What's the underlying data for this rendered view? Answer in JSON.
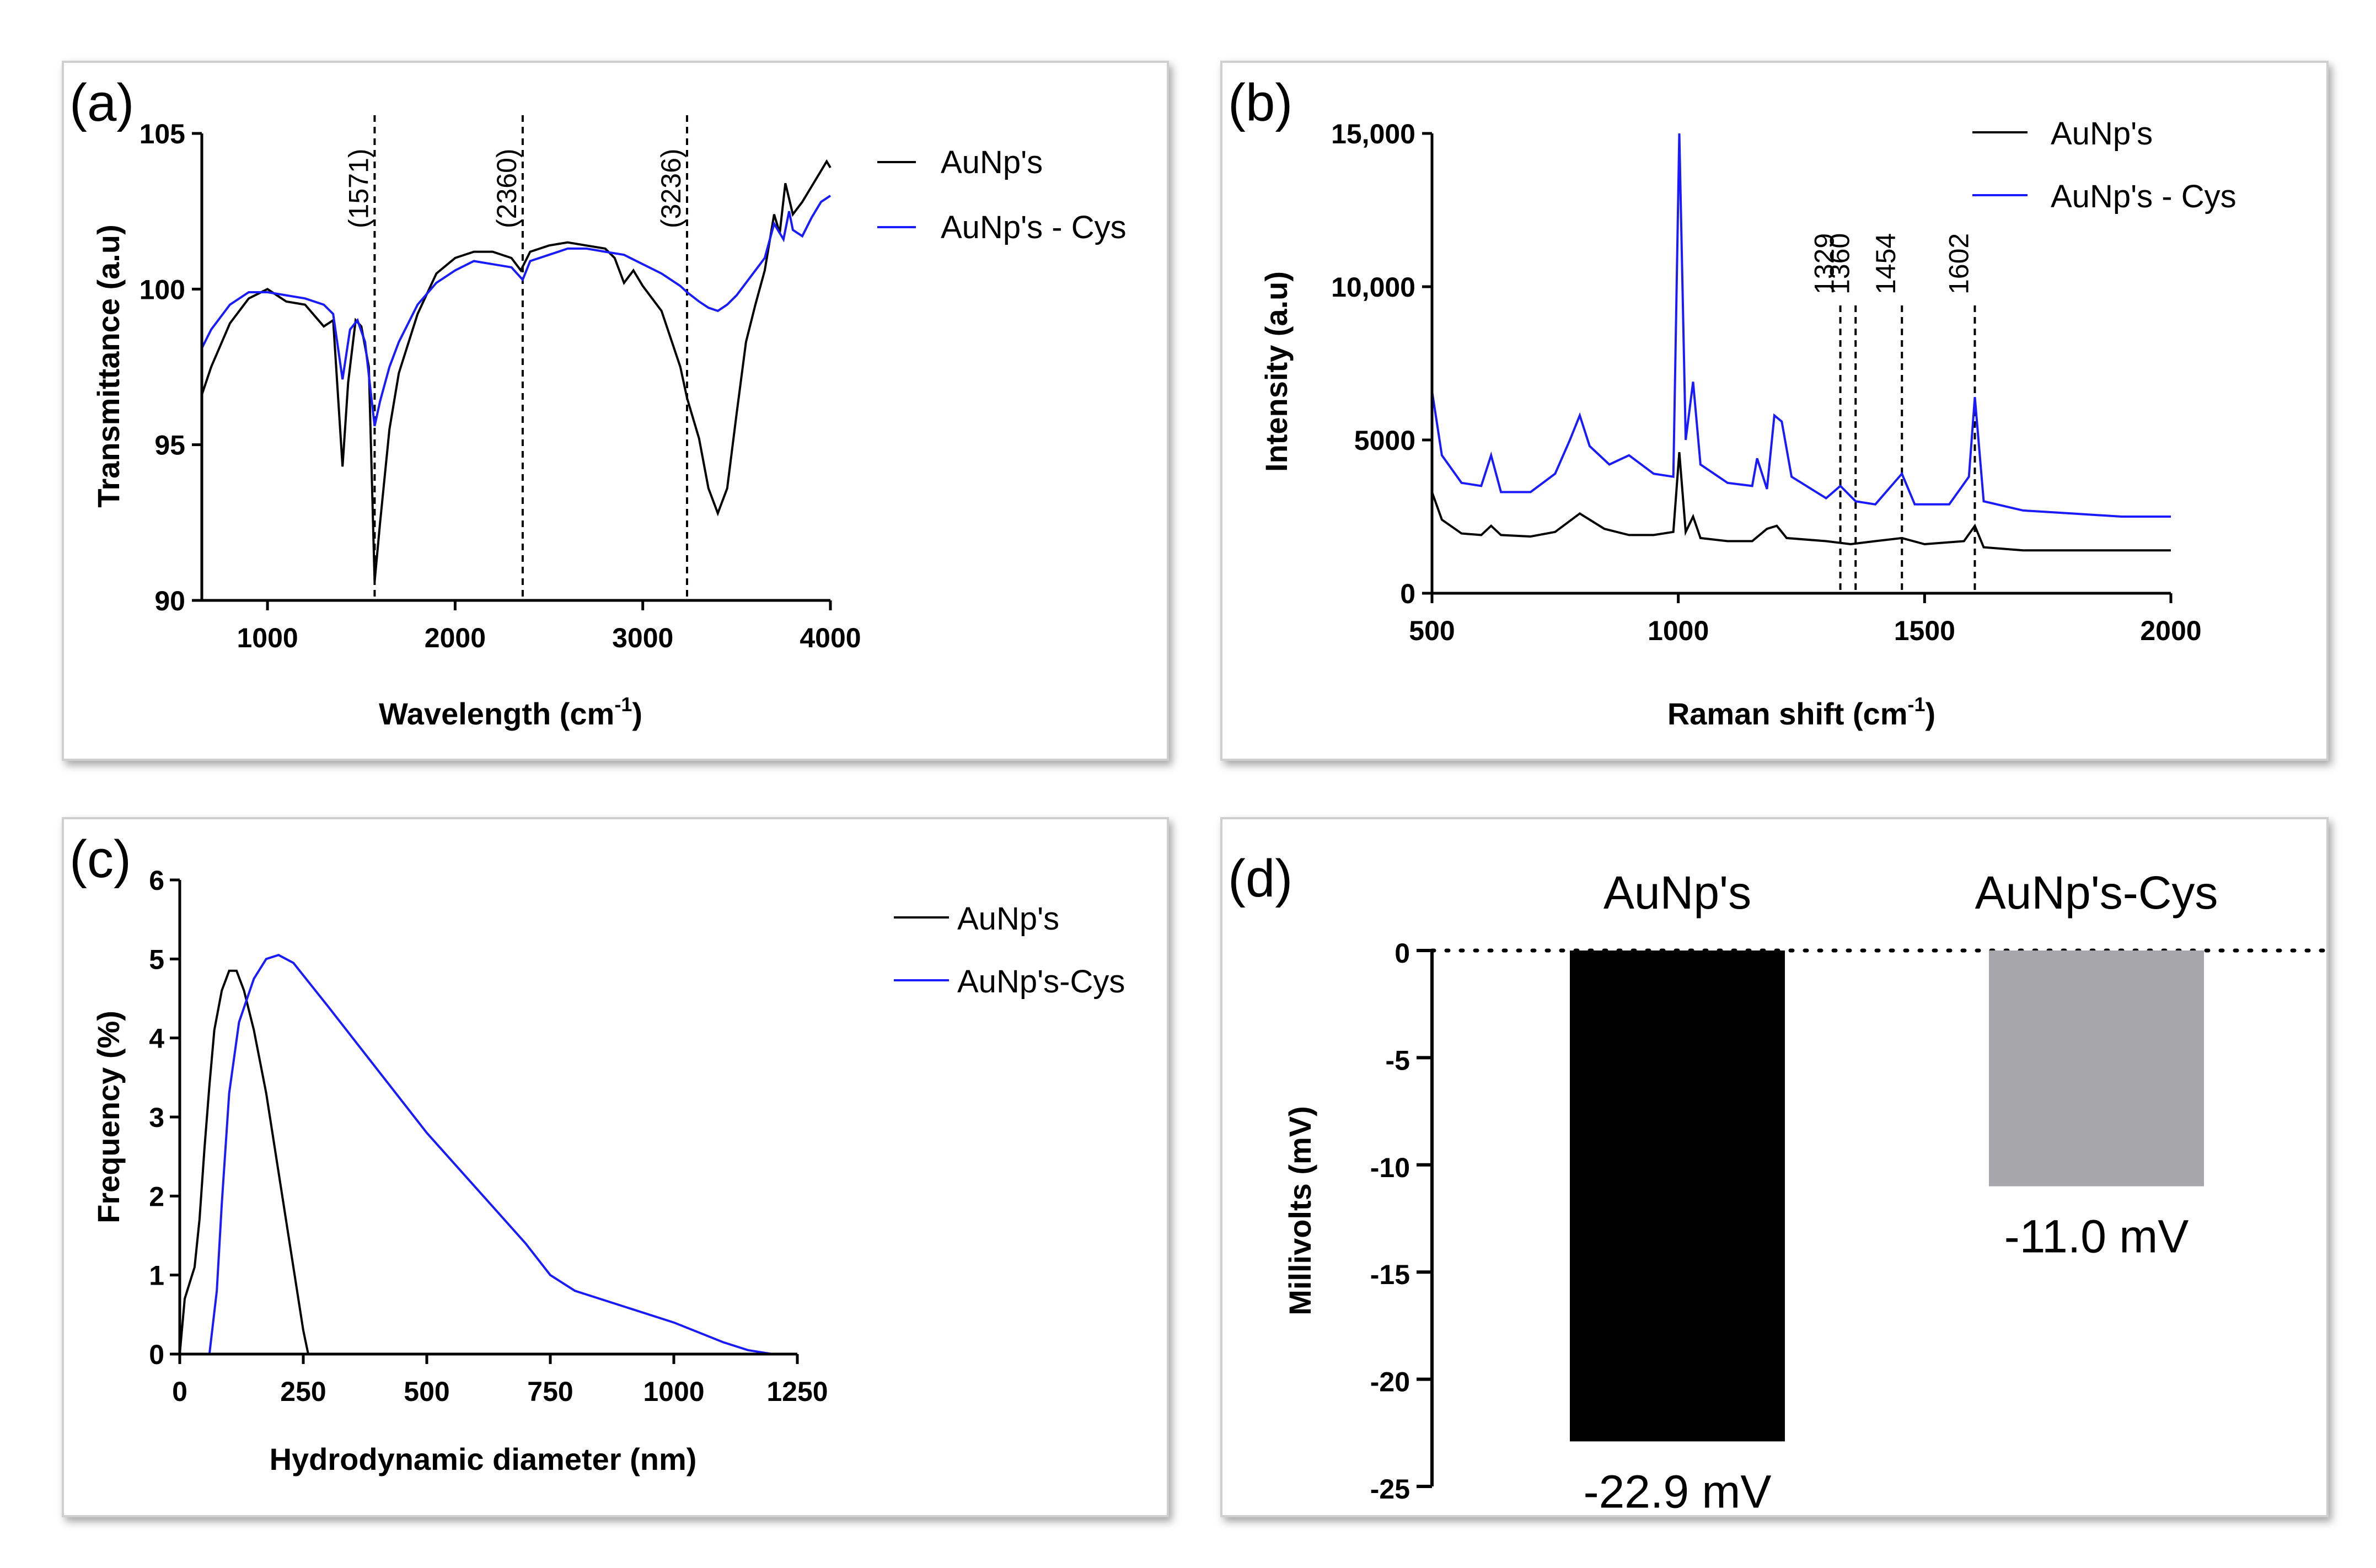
{
  "chart_data": [
    {
      "id": "a",
      "panel_label": "(a)",
      "type": "line",
      "xlabel": "Wavelength (cm",
      "xlabel_sup": "-1",
      "xlabel_end": ")",
      "ylabel": "Transmittance (a.u)",
      "xlim": [
        650,
        4000
      ],
      "ylim": [
        90,
        105
      ],
      "xticks": [
        1000,
        2000,
        3000,
        4000
      ],
      "yticks": [
        90,
        95,
        100,
        105
      ],
      "annotations": [
        {
          "x": 1571,
          "label": "(1571)"
        },
        {
          "x": 2360,
          "label": "(2360)"
        },
        {
          "x": 3236,
          "label": "(3236)"
        }
      ],
      "series": [
        {
          "name": "AuNp's",
          "color": "#000000",
          "points": [
            [
              650,
              96.6
            ],
            [
              700,
              97.5
            ],
            [
              800,
              98.9
            ],
            [
              900,
              99.7
            ],
            [
              1000,
              100.0
            ],
            [
              1100,
              99.6
            ],
            [
              1200,
              99.5
            ],
            [
              1300,
              98.8
            ],
            [
              1350,
              99.0
            ],
            [
              1400,
              94.3
            ],
            [
              1430,
              97.0
            ],
            [
              1470,
              99.0
            ],
            [
              1500,
              98.8
            ],
            [
              1540,
              97.5
            ],
            [
              1571,
              90.6
            ],
            [
              1600,
              92.5
            ],
            [
              1650,
              95.5
            ],
            [
              1700,
              97.3
            ],
            [
              1800,
              99.2
            ],
            [
              1900,
              100.5
            ],
            [
              2000,
              101.0
            ],
            [
              2100,
              101.2
            ],
            [
              2200,
              101.2
            ],
            [
              2300,
              101.0
            ],
            [
              2350,
              100.6
            ],
            [
              2400,
              101.2
            ],
            [
              2500,
              101.4
            ],
            [
              2600,
              101.5
            ],
            [
              2700,
              101.4
            ],
            [
              2800,
              101.3
            ],
            [
              2850,
              101.0
            ],
            [
              2900,
              100.2
            ],
            [
              2950,
              100.6
            ],
            [
              3000,
              100.1
            ],
            [
              3100,
              99.3
            ],
            [
              3200,
              97.5
            ],
            [
              3236,
              96.5
            ],
            [
              3300,
              95.2
            ],
            [
              3350,
              93.6
            ],
            [
              3400,
              92.8
            ],
            [
              3450,
              93.6
            ],
            [
              3500,
              96.0
            ],
            [
              3550,
              98.3
            ],
            [
              3600,
              99.5
            ],
            [
              3650,
              100.6
            ],
            [
              3700,
              102.4
            ],
            [
              3730,
              101.8
            ],
            [
              3760,
              103.4
            ],
            [
              3800,
              102.4
            ],
            [
              3850,
              102.8
            ],
            [
              3900,
              103.3
            ],
            [
              3950,
              103.8
            ],
            [
              3980,
              104.1
            ],
            [
              4000,
              103.9
            ]
          ]
        },
        {
          "name": "AuNp's - Cys",
          "color": "#1a1aff",
          "points": [
            [
              650,
              98.1
            ],
            [
              700,
              98.7
            ],
            [
              800,
              99.5
            ],
            [
              900,
              99.9
            ],
            [
              1000,
              99.9
            ],
            [
              1100,
              99.8
            ],
            [
              1200,
              99.7
            ],
            [
              1300,
              99.5
            ],
            [
              1350,
              99.2
            ],
            [
              1400,
              97.1
            ],
            [
              1440,
              98.7
            ],
            [
              1480,
              99.0
            ],
            [
              1520,
              98.3
            ],
            [
              1571,
              95.6
            ],
            [
              1600,
              96.4
            ],
            [
              1650,
              97.5
            ],
            [
              1700,
              98.3
            ],
            [
              1800,
              99.5
            ],
            [
              1900,
              100.2
            ],
            [
              2000,
              100.6
            ],
            [
              2100,
              100.9
            ],
            [
              2200,
              100.8
            ],
            [
              2300,
              100.7
            ],
            [
              2360,
              100.3
            ],
            [
              2400,
              100.9
            ],
            [
              2500,
              101.1
            ],
            [
              2600,
              101.3
            ],
            [
              2700,
              101.3
            ],
            [
              2800,
              101.2
            ],
            [
              2900,
              101.1
            ],
            [
              3000,
              100.8
            ],
            [
              3100,
              100.5
            ],
            [
              3200,
              100.1
            ],
            [
              3236,
              99.9
            ],
            [
              3300,
              99.6
            ],
            [
              3350,
              99.4
            ],
            [
              3400,
              99.3
            ],
            [
              3450,
              99.5
            ],
            [
              3500,
              99.8
            ],
            [
              3600,
              100.6
            ],
            [
              3650,
              101.0
            ],
            [
              3700,
              102.1
            ],
            [
              3750,
              101.6
            ],
            [
              3780,
              102.5
            ],
            [
              3800,
              101.9
            ],
            [
              3850,
              101.7
            ],
            [
              3900,
              102.3
            ],
            [
              3950,
              102.8
            ],
            [
              4000,
              103.0
            ]
          ]
        }
      ]
    },
    {
      "id": "b",
      "panel_label": "(b)",
      "type": "line",
      "xlabel": "Raman shift (cm",
      "xlabel_sup": "-1",
      "xlabel_end": ")",
      "ylabel": "Intensity (a.u)",
      "xlim": [
        500,
        2000
      ],
      "ylim": [
        0,
        15000
      ],
      "xticks": [
        500,
        1000,
        1500,
        2000
      ],
      "yticks": [
        0,
        5000,
        10000,
        15000
      ],
      "ytick_labels": [
        "0",
        "5000",
        "10,000",
        "15,000"
      ],
      "annotations": [
        {
          "x": 1329,
          "label": "1329"
        },
        {
          "x": 1360,
          "label": "1360"
        },
        {
          "x": 1454,
          "label": "1454"
        },
        {
          "x": 1602,
          "label": "1602"
        }
      ],
      "series": [
        {
          "name": "AuNp's",
          "color": "#000000",
          "points": [
            [
              500,
              3300
            ],
            [
              520,
              2400
            ],
            [
              560,
              1950
            ],
            [
              600,
              1900
            ],
            [
              620,
              2200
            ],
            [
              640,
              1900
            ],
            [
              700,
              1850
            ],
            [
              750,
              2000
            ],
            [
              800,
              2600
            ],
            [
              850,
              2100
            ],
            [
              900,
              1900
            ],
            [
              950,
              1900
            ],
            [
              990,
              2000
            ],
            [
              1002,
              4600
            ],
            [
              1015,
              2000
            ],
            [
              1030,
              2500
            ],
            [
              1045,
              1800
            ],
            [
              1100,
              1700
            ],
            [
              1150,
              1700
            ],
            [
              1180,
              2100
            ],
            [
              1200,
              2200
            ],
            [
              1220,
              1800
            ],
            [
              1300,
              1700
            ],
            [
              1350,
              1600
            ],
            [
              1400,
              1700
            ],
            [
              1454,
              1800
            ],
            [
              1500,
              1600
            ],
            [
              1580,
              1700
            ],
            [
              1602,
              2200
            ],
            [
              1620,
              1500
            ],
            [
              1700,
              1400
            ],
            [
              1800,
              1400
            ],
            [
              1900,
              1400
            ],
            [
              2000,
              1400
            ]
          ]
        },
        {
          "name": "AuNp's - Cys",
          "color": "#1a1aff",
          "points": [
            [
              500,
              6600
            ],
            [
              520,
              4500
            ],
            [
              560,
              3600
            ],
            [
              600,
              3500
            ],
            [
              620,
              4500
            ],
            [
              640,
              3300
            ],
            [
              700,
              3300
            ],
            [
              750,
              3900
            ],
            [
              780,
              5000
            ],
            [
              800,
              5800
            ],
            [
              820,
              4800
            ],
            [
              860,
              4200
            ],
            [
              900,
              4500
            ],
            [
              950,
              3900
            ],
            [
              990,
              3800
            ],
            [
              1002,
              15000
            ],
            [
              1015,
              5000
            ],
            [
              1030,
              6900
            ],
            [
              1045,
              4200
            ],
            [
              1100,
              3600
            ],
            [
              1150,
              3500
            ],
            [
              1160,
              4400
            ],
            [
              1180,
              3400
            ],
            [
              1195,
              5800
            ],
            [
              1210,
              5600
            ],
            [
              1230,
              3800
            ],
            [
              1300,
              3100
            ],
            [
              1329,
              3500
            ],
            [
              1360,
              3000
            ],
            [
              1400,
              2900
            ],
            [
              1454,
              3900
            ],
            [
              1480,
              2900
            ],
            [
              1550,
              2900
            ],
            [
              1590,
              3800
            ],
            [
              1602,
              6400
            ],
            [
              1620,
              3000
            ],
            [
              1700,
              2700
            ],
            [
              1800,
              2600
            ],
            [
              1900,
              2500
            ],
            [
              2000,
              2500
            ]
          ]
        }
      ]
    },
    {
      "id": "c",
      "panel_label": "(c)",
      "type": "line",
      "xlabel": "Hydrodynamic diameter (nm)",
      "ylabel": "Frequency (%)",
      "xlim": [
        0,
        1250
      ],
      "ylim": [
        0,
        6
      ],
      "xticks": [
        0,
        250,
        500,
        750,
        1000,
        1250
      ],
      "yticks": [
        0,
        1,
        2,
        3,
        4,
        5,
        6
      ],
      "series": [
        {
          "name": "AuNp's",
          "color": "#000000",
          "points": [
            [
              0,
              0
            ],
            [
              10,
              0.7
            ],
            [
              20,
              0.9
            ],
            [
              30,
              1.1
            ],
            [
              40,
              1.7
            ],
            [
              50,
              2.6
            ],
            [
              60,
              3.4
            ],
            [
              70,
              4.1
            ],
            [
              85,
              4.6
            ],
            [
              100,
              4.85
            ],
            [
              115,
              4.85
            ],
            [
              130,
              4.6
            ],
            [
              150,
              4.1
            ],
            [
              175,
              3.3
            ],
            [
              200,
              2.3
            ],
            [
              225,
              1.3
            ],
            [
              250,
              0.3
            ],
            [
              260,
              0
            ]
          ]
        },
        {
          "name": "AuNp's-Cys",
          "color": "#1a1aff",
          "points": [
            [
              60,
              0
            ],
            [
              75,
              0.8
            ],
            [
              85,
              1.9
            ],
            [
              100,
              3.3
            ],
            [
              120,
              4.2
            ],
            [
              150,
              4.75
            ],
            [
              175,
              5.0
            ],
            [
              200,
              5.05
            ],
            [
              230,
              4.95
            ],
            [
              300,
              4.4
            ],
            [
              400,
              3.6
            ],
            [
              500,
              2.8
            ],
            [
              600,
              2.1
            ],
            [
              700,
              1.4
            ],
            [
              750,
              1.0
            ],
            [
              800,
              0.8
            ],
            [
              900,
              0.6
            ],
            [
              1000,
              0.4
            ],
            [
              1100,
              0.15
            ],
            [
              1150,
              0.05
            ],
            [
              1200,
              0
            ]
          ]
        }
      ]
    },
    {
      "id": "d",
      "panel_label": "(d)",
      "type": "bar",
      "ylabel": "Millivolts (mV)",
      "ylim": [
        -25,
        0
      ],
      "yticks": [
        0,
        -5,
        -10,
        -15,
        -20,
        -25
      ],
      "categories": [
        "AuNp's",
        "AuNp's-Cys"
      ],
      "values": [
        -22.9,
        -11.0
      ],
      "value_labels": [
        "-22.9 mV",
        "-11.0 mV"
      ],
      "colors": [
        "#000000",
        "#a7a7ab"
      ]
    }
  ]
}
